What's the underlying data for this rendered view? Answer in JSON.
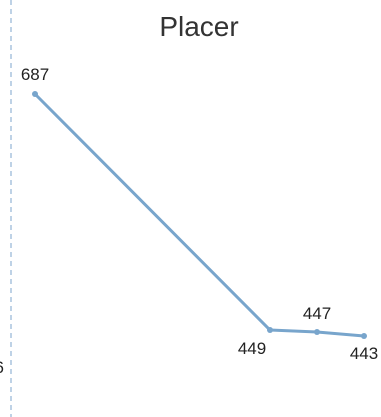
{
  "chart_data": {
    "type": "line",
    "title": "Placer",
    "x": [
      0,
      1,
      2,
      3
    ],
    "series": [
      {
        "values": [
          687,
          449,
          447,
          443
        ],
        "data_labels": [
          "687",
          "449",
          "447",
          "443"
        ],
        "color": "#78a5cc"
      }
    ],
    "yaxis_visible_tick_label": "6",
    "grid": false,
    "legend": "none",
    "axis_color": "#a9c4de"
  }
}
